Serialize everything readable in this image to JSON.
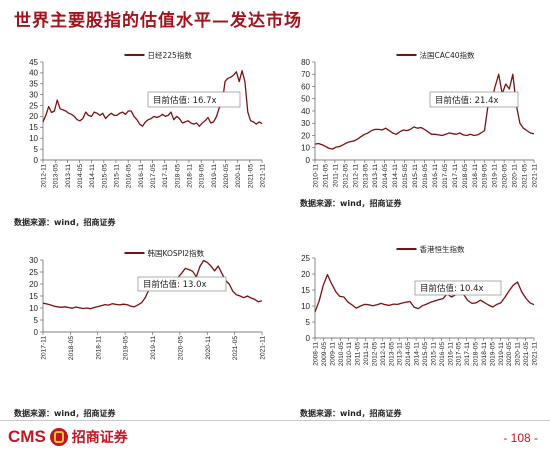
{
  "page": {
    "title": "世界主要股指的估值水平—发达市场",
    "source": "数据来源：wind，招商证券",
    "logo_text": "CMS",
    "logo_cn": "招商证券",
    "page_number": "- 108 -"
  },
  "chart_data": [
    {
      "type": "line",
      "legend": "日经225指数",
      "legend_position": "top-center",
      "annotation": "目前估值: 16.7x",
      "color": "#7b1113",
      "ylim": [
        0,
        45
      ],
      "yticks": [
        0,
        5,
        10,
        15,
        20,
        25,
        30,
        35,
        40,
        45
      ],
      "x_labels": [
        "2012-11",
        "2013-05",
        "2013-11",
        "2014-05",
        "2014-11",
        "2015-05",
        "2015-11",
        "2016-05",
        "2016-11",
        "2017-05",
        "2017-11",
        "2018-05",
        "2018-11",
        "2019-05",
        "2019-11",
        "2020-05",
        "2020-11",
        "2021-05",
        "2021-11"
      ],
      "values": [
        17.5,
        20.5,
        24.5,
        21.8,
        22.5,
        27.5,
        23.5,
        23,
        22.5,
        21.5,
        21,
        20,
        18.5,
        18,
        19,
        22,
        20.5,
        20,
        22,
        21.5,
        20.5,
        21.5,
        19,
        20.5,
        21.5,
        20.5,
        20.5,
        21.5,
        22,
        21,
        22.5,
        22.5,
        20,
        18.5,
        16.5,
        15.5,
        17.5,
        18.5,
        19,
        20,
        19.5,
        20,
        21,
        20,
        20.5,
        22,
        18.5,
        20,
        19,
        17,
        17.5,
        18,
        17,
        16.5,
        17,
        15.5,
        17,
        18,
        19.5,
        17,
        17.5,
        20,
        24,
        26,
        36,
        37.5,
        38,
        39,
        40.5,
        36,
        41,
        36,
        22,
        18,
        17.5,
        16.5,
        17.5,
        16.7
      ]
    },
    {
      "type": "line",
      "legend": "法国CAC40指数",
      "legend_position": "top-center",
      "annotation": "目前估值: 21.4x",
      "color": "#7b1113",
      "ylim": [
        0,
        80
      ],
      "yticks": [
        0,
        10,
        20,
        30,
        40,
        50,
        60,
        70,
        80
      ],
      "x_labels": [
        "2010-11",
        "2011-05",
        "2011-11",
        "2012-05",
        "2012-11",
        "2013-05",
        "2013-11",
        "2014-05",
        "2014-11",
        "2015-05",
        "2015-11",
        "2016-05",
        "2016-11",
        "2017-05",
        "2017-11",
        "2018-05",
        "2018-11",
        "2019-05",
        "2019-11",
        "2020-05",
        "2020-11",
        "2021-05",
        "2021-11"
      ],
      "values": [
        13,
        13.5,
        12.5,
        11,
        9.5,
        9,
        10.5,
        11,
        12.5,
        14,
        15,
        15.5,
        17,
        19,
        21,
        22,
        24,
        25,
        25,
        24.5,
        26,
        24,
        22,
        21,
        23,
        24.5,
        24,
        25,
        27,
        26,
        26.5,
        25,
        23,
        21,
        21,
        20.5,
        20,
        21,
        22,
        21.5,
        21,
        22,
        20.5,
        20,
        21,
        20,
        20.5,
        22,
        24,
        45,
        48,
        60,
        70,
        54,
        62,
        58,
        70,
        45,
        30,
        26,
        24,
        22,
        21.4
      ]
    },
    {
      "type": "line",
      "legend": "韩国KOSPI2指数",
      "legend_position": "top-center",
      "annotation": "目前估值: 13.0x",
      "color": "#7b1113",
      "ylim": [
        0,
        30
      ],
      "yticks": [
        0,
        5,
        10,
        15,
        20,
        25,
        30
      ],
      "x_labels": [
        "2017-11",
        "2018-05",
        "2018-11",
        "2019-05",
        "2019-11",
        "2020-05",
        "2020-11",
        "2021-05",
        "2021-11"
      ],
      "values": [
        12,
        11.7,
        11.3,
        10.8,
        10.5,
        10.3,
        10.5,
        10.2,
        9.9,
        10.4,
        10.1,
        9.8,
        10,
        9.7,
        10.2,
        10.6,
        11,
        11.4,
        11.2,
        11.8,
        11.5,
        11.3,
        11.6,
        11.4,
        10.8,
        10.5,
        11.3,
        12.2,
        14.3,
        17.5,
        20.5,
        21.3,
        22,
        22.6,
        22,
        21.4,
        20.8,
        22.8,
        24.5,
        26.5,
        26,
        25.3,
        23,
        27.3,
        29.8,
        29,
        27.5,
        25.5,
        27.5,
        24.5,
        21.5,
        20,
        17,
        15.5,
        15,
        14.3,
        15,
        14.2,
        13.6,
        12.6,
        13.0
      ]
    },
    {
      "type": "line",
      "legend": "香港恒生指数",
      "legend_position": "top-center",
      "annotation": "目前估值: 10.4x",
      "color": "#7b1113",
      "ylim": [
        0,
        25
      ],
      "yticks": [
        0,
        5,
        10,
        15,
        20,
        25
      ],
      "x_labels": [
        "2008-11",
        "2009-05",
        "2009-11",
        "2010-05",
        "2010-11",
        "2011-05",
        "2011-11",
        "2012-05",
        "2012-11",
        "2013-05",
        "2013-11",
        "2014-05",
        "2014-11",
        "2015-05",
        "2015-11",
        "2016-05",
        "2016-11",
        "2017-05",
        "2017-11",
        "2018-05",
        "2018-11",
        "2019-05",
        "2019-11",
        "2020-05",
        "2020-11",
        "2021-05",
        "2021-11"
      ],
      "values": [
        8.2,
        11.5,
        16.5,
        19.8,
        17,
        14.5,
        13,
        12.8,
        11.2,
        10.3,
        9.3,
        10,
        10.5,
        10.4,
        10.1,
        10.4,
        10.8,
        10.4,
        10.2,
        10.6,
        10.5,
        10.9,
        11.2,
        11.4,
        9.6,
        9.2,
        10.1,
        10.6,
        11.2,
        11.6,
        12,
        12.3,
        13.8,
        12.8,
        13.5,
        14,
        13.5,
        11.7,
        10.8,
        11,
        11.8,
        11.1,
        10.3,
        9.7,
        10.5,
        11,
        12.8,
        14.8,
        16.5,
        17.5,
        14.5,
        12.5,
        11,
        10.4
      ]
    }
  ]
}
